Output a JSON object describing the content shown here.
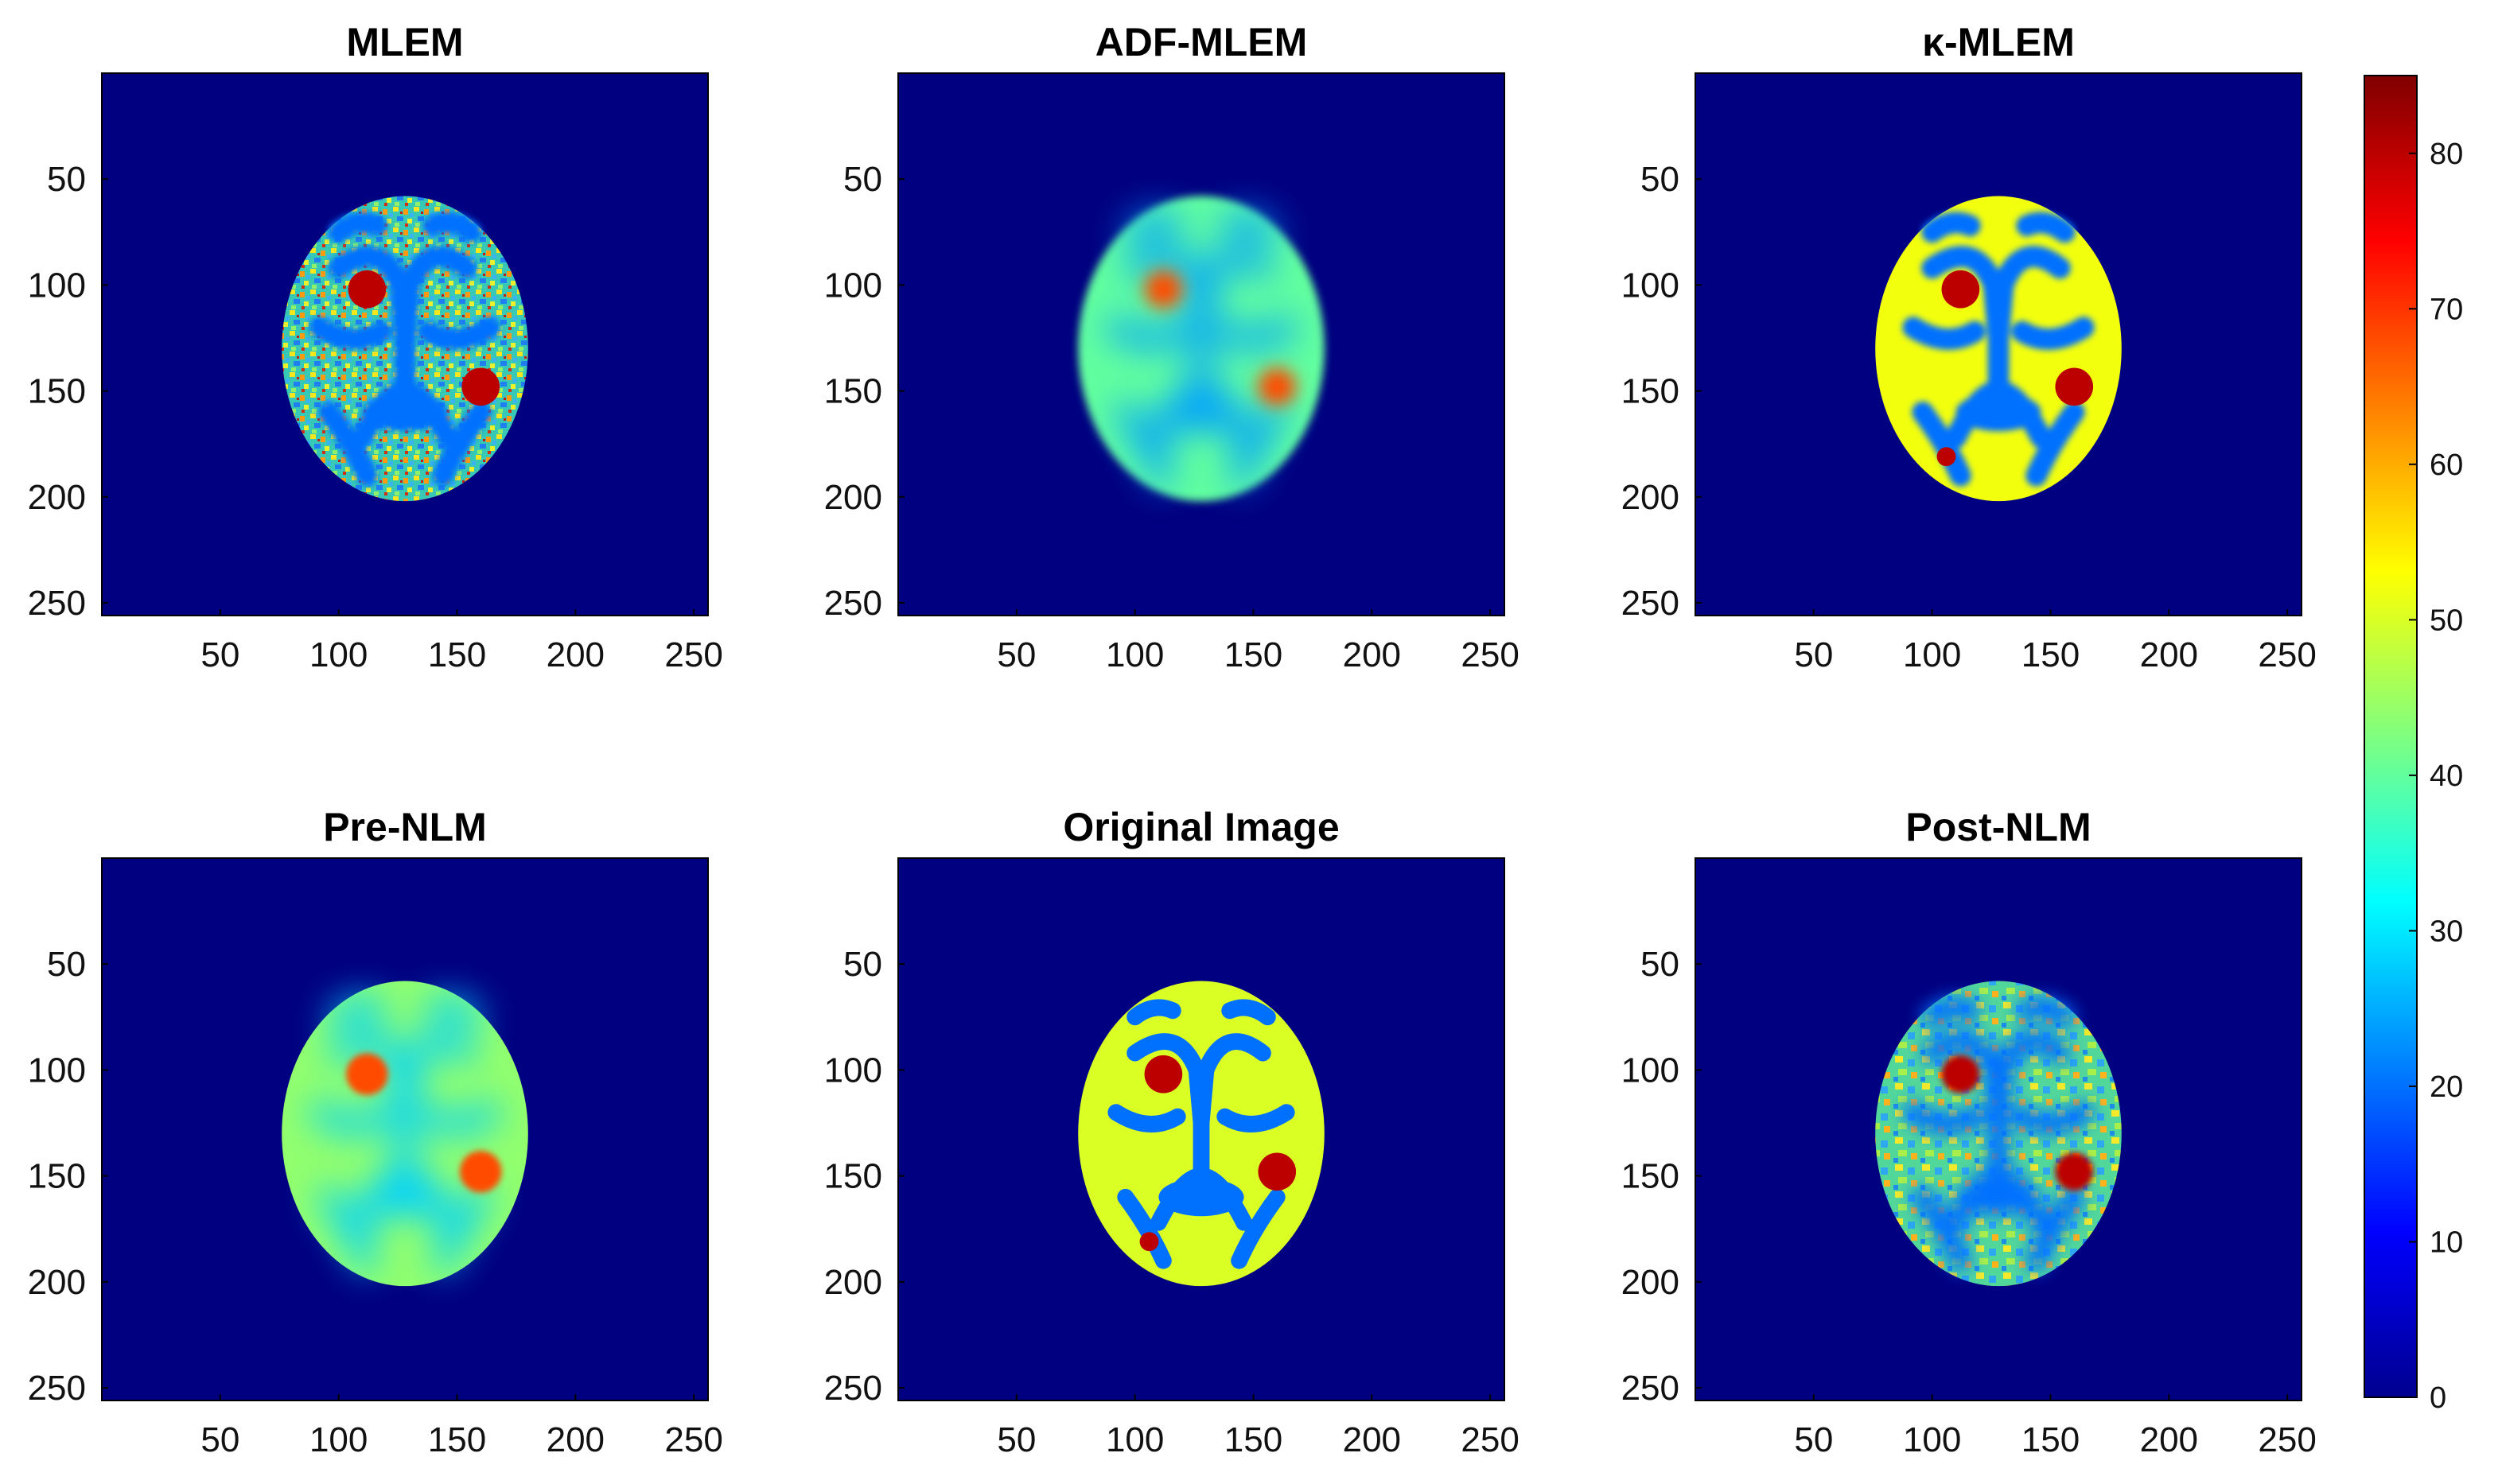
{
  "chart_data": {
    "type": "heatmap",
    "colormap": "jet",
    "colorbar": {
      "clim": [
        0,
        85
      ],
      "ticks": [
        0,
        10,
        20,
        30,
        40,
        50,
        60,
        70,
        80
      ]
    },
    "axis_ranges": {
      "x": [
        0,
        256
      ],
      "y": [
        0,
        256
      ]
    },
    "x_ticks": [
      50,
      100,
      150,
      200,
      250
    ],
    "y_ticks": [
      50,
      100,
      150,
      200,
      250
    ],
    "grid": false,
    "panels": [
      {
        "title": "MLEM",
        "style": "noisy"
      },
      {
        "title": "ADF-MLEM",
        "style": "blurred"
      },
      {
        "title": "κ-MLEM",
        "style": "sharp"
      },
      {
        "title": "Pre-NLM",
        "style": "very-smooth"
      },
      {
        "title": "Original Image",
        "style": "phantom"
      },
      {
        "title": "Post-NLM",
        "style": "medium"
      }
    ],
    "features": {
      "background": 0,
      "gray_matter": 50,
      "white_matter": 20,
      "lesions": [
        {
          "x": 112,
          "y": 102,
          "value": 80
        },
        {
          "x": 160,
          "y": 148,
          "value": 80
        },
        {
          "x": 106,
          "y": 181,
          "value": 80
        }
      ]
    }
  }
}
